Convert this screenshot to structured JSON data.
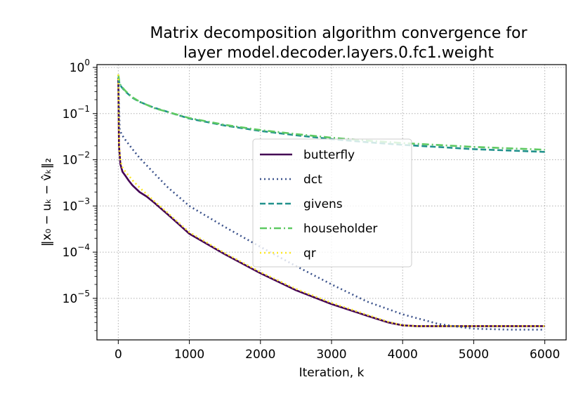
{
  "chart_data": {
    "type": "line",
    "title": [
      "Matrix decomposition algorithm convergence for",
      "layer model.decoder.layers.0.fc1.weight"
    ],
    "xlabel": "Iteration, k",
    "ylabel": "‖x₀ − uₖ − v̂ₖ‖₂",
    "xlim": [
      -300,
      6300
    ],
    "ylim": [
      1.26e-06,
      1.15
    ],
    "yscale": "log",
    "xticks": [
      0,
      1000,
      2000,
      3000,
      4000,
      5000,
      6000
    ],
    "xtick_labels": [
      "0",
      "1000",
      "2000",
      "3000",
      "4000",
      "5000",
      "6000"
    ],
    "yticks": [
      1e-05,
      0.0001,
      0.001,
      0.01,
      0.1,
      1
    ],
    "ytick_labels": [
      {
        "base": "10",
        "exp": "−5"
      },
      {
        "base": "10",
        "exp": "−4"
      },
      {
        "base": "10",
        "exp": "−3"
      },
      {
        "base": "10",
        "exp": "−2"
      },
      {
        "base": "10",
        "exp": "−1"
      },
      {
        "base": "10",
        "exp": "0"
      }
    ],
    "grid": true,
    "legend_position": "center",
    "series": [
      {
        "name": "butterfly",
        "color": "#440154",
        "dash": "solid",
        "x": [
          0,
          10,
          30,
          60,
          100,
          150,
          200,
          300,
          400,
          500,
          700,
          1000,
          1500,
          2000,
          2500,
          3000,
          3500,
          3800,
          4000,
          4200,
          5000,
          6000
        ],
        "y": [
          0.6,
          0.02,
          0.008,
          0.0055,
          0.0045,
          0.0035,
          0.0028,
          0.002,
          0.0016,
          0.0012,
          0.00065,
          0.00025,
          9e-05,
          3.5e-05,
          1.5e-05,
          7.5e-06,
          4.2e-06,
          3e-06,
          2.6e-06,
          2.5e-06,
          2.5e-06,
          2.5e-06
        ]
      },
      {
        "name": "dct",
        "color": "#3b528b",
        "dash": "dotted",
        "x": [
          0,
          20,
          50,
          100,
          200,
          300,
          500,
          700,
          1000,
          1500,
          2000,
          2500,
          3000,
          3500,
          4000,
          4500,
          4800,
          5000,
          5500,
          6000
        ],
        "y": [
          0.6,
          0.045,
          0.035,
          0.027,
          0.017,
          0.011,
          0.0052,
          0.0025,
          0.001,
          0.00035,
          0.00013,
          5e-05,
          2e-05,
          8.5e-06,
          4.5e-06,
          2.8e-06,
          2.4e-06,
          2.2e-06,
          2.1e-06,
          2.1e-06
        ]
      },
      {
        "name": "givens",
        "color": "#21918c",
        "dash": "dashed",
        "x": [
          0,
          20,
          50,
          100,
          200,
          300,
          500,
          1000,
          1500,
          2000,
          2500,
          3000,
          3500,
          4000,
          5000,
          6000
        ],
        "y": [
          0.6,
          0.43,
          0.37,
          0.3,
          0.22,
          0.18,
          0.135,
          0.078,
          0.055,
          0.042,
          0.034,
          0.028,
          0.024,
          0.021,
          0.017,
          0.0148
        ]
      },
      {
        "name": "householder",
        "color": "#5ec962",
        "dash": "dashdot",
        "x": [
          0,
          20,
          50,
          100,
          200,
          300,
          500,
          1000,
          1500,
          2000,
          2500,
          3000,
          3500,
          4000,
          5000,
          6000
        ],
        "y": [
          0.7,
          0.44,
          0.38,
          0.31,
          0.225,
          0.182,
          0.132,
          0.08,
          0.057,
          0.044,
          0.036,
          0.03,
          0.026,
          0.023,
          0.019,
          0.0165
        ]
      },
      {
        "name": "qr",
        "color": "#fde725",
        "dash": "dotted",
        "x": [
          0,
          10,
          30,
          60,
          100,
          150,
          200,
          300,
          400,
          500,
          700,
          1000,
          1500,
          2000,
          2500,
          3000,
          3500,
          3800,
          4000,
          4200,
          5000,
          6000
        ],
        "y": [
          0.7,
          0.022,
          0.0095,
          0.0068,
          0.0055,
          0.0045,
          0.0036,
          0.0025,
          0.0018,
          0.0013,
          0.0007,
          0.00027,
          9.5e-05,
          3.7e-05,
          1.6e-05,
          8e-06,
          4.4e-06,
          3.1e-06,
          2.6e-06,
          2.5e-06,
          2.5e-06,
          2.5e-06
        ]
      }
    ]
  }
}
